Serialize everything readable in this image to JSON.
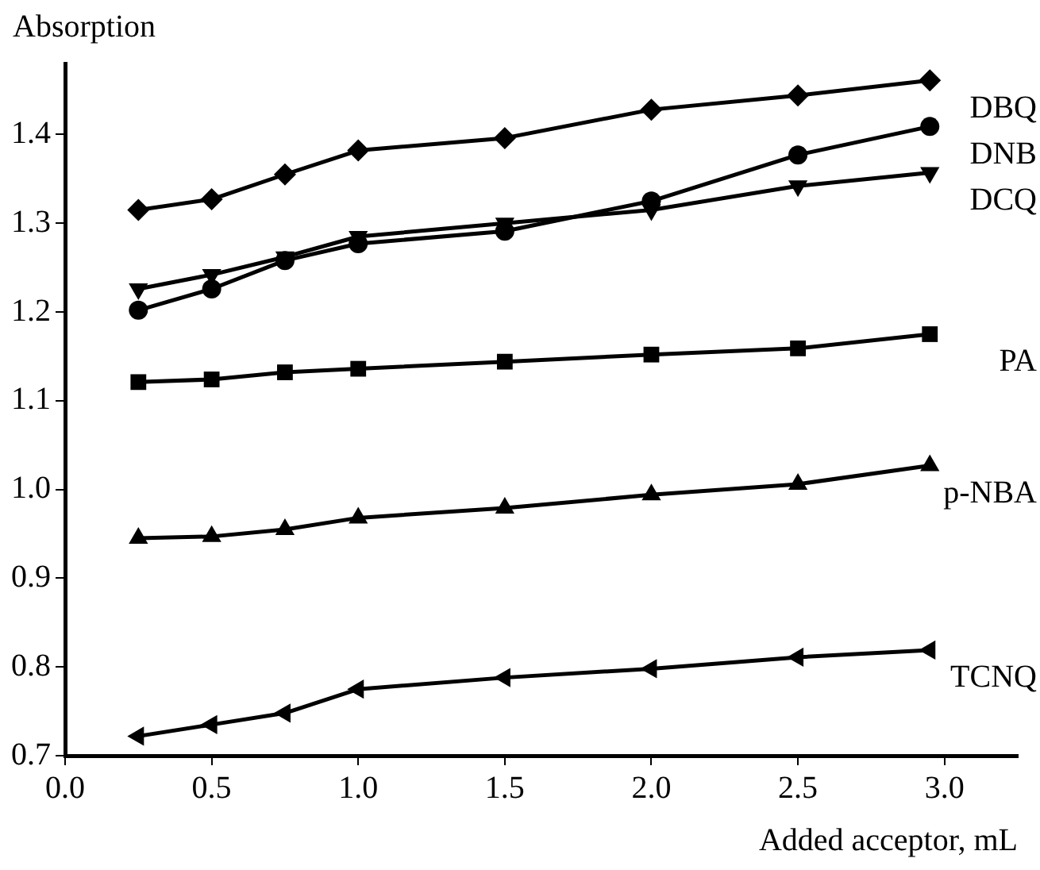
{
  "chart_data": {
    "type": "line",
    "xlabel": "Added acceptor, mL",
    "ylabel": "Absorption",
    "x": [
      0.25,
      0.5,
      0.75,
      1.0,
      1.5,
      2.0,
      2.5,
      2.95
    ],
    "series": [
      {
        "name": "DBQ",
        "color": "#000000",
        "marker": "diamond",
        "values": [
          1.315,
          1.327,
          1.355,
          1.382,
          1.396,
          1.428,
          1.444,
          1.461
        ]
      },
      {
        "name": "DNB",
        "color": "#000000",
        "marker": "circle",
        "values": [
          1.202,
          1.226,
          1.258,
          1.277,
          1.291,
          1.325,
          1.377,
          1.409
        ]
      },
      {
        "name": "DCQ",
        "color": "#000000",
        "marker": "triangle-down",
        "values": [
          1.226,
          1.242,
          1.262,
          1.285,
          1.3,
          1.315,
          1.342,
          1.357
        ]
      },
      {
        "name": "PA",
        "color": "#000000",
        "marker": "square",
        "values": [
          1.121,
          1.124,
          1.132,
          1.136,
          1.144,
          1.152,
          1.159,
          1.175
        ]
      },
      {
        "name": "p-NBA",
        "color": "#000000",
        "marker": "triangle",
        "values": [
          0.945,
          0.947,
          0.955,
          0.968,
          0.979,
          0.994,
          1.006,
          1.027
        ]
      },
      {
        "name": "TCNQ",
        "color": "#000000",
        "marker": "triangle-left",
        "values": [
          0.722,
          0.735,
          0.748,
          0.775,
          0.788,
          0.798,
          0.811,
          0.819
        ]
      }
    ],
    "xlim": [
      0,
      3.25
    ],
    "xticks": [
      {
        "value": 0,
        "label": "0.0"
      },
      0.5,
      {
        "value": 1,
        "label": "1.0"
      },
      1.5,
      {
        "value": 2,
        "label": "2.0"
      },
      2.5,
      {
        "value": 3,
        "label": "3.0"
      }
    ],
    "ylim": [
      0.7,
      1.48
    ],
    "yticks": [
      0.7,
      0.8,
      0.9,
      {
        "value": 1,
        "label": "1.0"
      },
      1.1,
      1.2,
      1.3,
      1.4
    ],
    "grid": false,
    "legend": false,
    "line_style": "solid"
  }
}
